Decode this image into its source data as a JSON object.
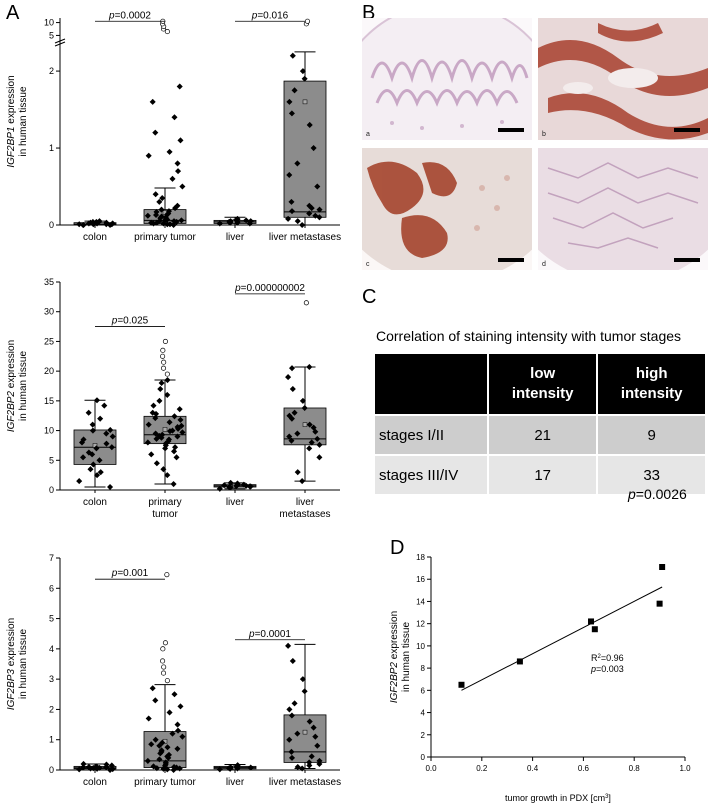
{
  "panels": {
    "A": "A",
    "B": "B",
    "C": "C",
    "D": "D"
  },
  "chart_data": [
    {
      "type": "box",
      "ylabel_gene": "IGF2BP1",
      "ylabel_rest": " expression",
      "ylabel_line2": "in human tissue",
      "categories": [
        {
          "line1": "colon",
          "line2": ""
        },
        {
          "line1": "primary tumor",
          "line2": ""
        },
        {
          "line1": "liver",
          "line2": ""
        },
        {
          "line1": "liver metastases",
          "line2": ""
        }
      ],
      "yticks_lower": [
        {
          "v": 0,
          "label": "0"
        },
        {
          "v": 1,
          "label": "1"
        },
        {
          "v": 2,
          "label": "2"
        }
      ],
      "yticks_upper": [
        {
          "v": 5,
          "label": "5"
        },
        {
          "v": 10,
          "label": "10"
        }
      ],
      "axis_break": true,
      "boxes": [
        {
          "min": 0.0,
          "q1": 0.0,
          "median": 0.01,
          "q3": 0.03,
          "max": 0.05,
          "mean": 0.02
        },
        {
          "min": 0.0,
          "q1": 0.02,
          "median": 0.06,
          "q3": 0.2,
          "max": 0.48,
          "mean": 0.16
        },
        {
          "min": 0.0,
          "q1": 0.02,
          "median": 0.04,
          "q3": 0.06,
          "max": 0.1,
          "mean": 0.05
        },
        {
          "min": 0.0,
          "q1": 0.1,
          "median": 0.17,
          "q3": 1.87,
          "max": 2.25,
          "mean": 1.6
        }
      ],
      "points": [
        [
          0.0,
          0.01,
          0.02,
          0.03,
          0.01,
          0.05,
          0.0,
          0.02,
          0.04,
          0.01,
          0.03,
          0.0,
          0.02,
          0.01,
          0.04
        ],
        [
          0.0,
          0.01,
          0.02,
          0.03,
          0.04,
          0.05,
          0.06,
          0.08,
          0.1,
          0.12,
          0.15,
          0.18,
          0.2,
          0.25,
          0.3,
          0.35,
          0.4,
          0.5,
          0.6,
          0.7,
          0.8,
          0.9,
          0.95,
          1.1,
          1.2,
          1.4,
          1.6,
          1.8,
          0.02,
          0.05,
          0.07,
          0.09,
          0.11,
          0.14,
          0.03,
          0.01,
          0.06,
          0.13,
          0.17,
          0.22
        ],
        [
          0.02,
          0.03,
          0.04,
          0.05,
          0.06,
          0.07,
          0.03,
          0.04,
          0.08,
          0.05,
          0.02,
          0.06
        ],
        [
          0.0,
          0.05,
          0.1,
          0.15,
          0.2,
          0.22,
          0.3,
          0.5,
          0.65,
          0.8,
          1.0,
          1.3,
          1.45,
          1.6,
          1.75,
          1.9,
          2.0,
          2.2,
          0.08,
          0.18,
          0.25,
          0.12
        ]
      ],
      "outliers": [
        [],
        [
          6.5,
          7.5,
          8.5,
          9.5,
          10.5
        ],
        [],
        [
          9.5,
          10.5
        ]
      ],
      "comparisons": [
        {
          "from": 0,
          "to": 1,
          "label_p": "p",
          "label_val": "=0.0002",
          "y": 10.5
        },
        {
          "from": 2,
          "to": 3,
          "label_p": "p",
          "label_val": "=0.016",
          "y": 10.5
        }
      ]
    },
    {
      "type": "box",
      "ylabel_gene": "IGF2BP2",
      "ylabel_rest": " expression",
      "ylabel_line2": "in human tissue",
      "categories": [
        {
          "line1": "colon",
          "line2": ""
        },
        {
          "line1": "primary",
          "line2": "tumor"
        },
        {
          "line1": "liver",
          "line2": ""
        },
        {
          "line1": "liver",
          "line2": "metastases"
        }
      ],
      "ylim": [
        0,
        35
      ],
      "yticks": [
        0,
        5,
        10,
        15,
        20,
        25,
        30,
        35
      ],
      "boxes": [
        {
          "min": 0.5,
          "q1": 4.3,
          "median": 7.2,
          "q3": 10.1,
          "max": 15.1,
          "mean": 7.5
        },
        {
          "min": 1.0,
          "q1": 7.8,
          "median": 9.3,
          "q3": 12.4,
          "max": 18.5,
          "mean": 10.2
        },
        {
          "min": 0.2,
          "q1": 0.5,
          "median": 0.7,
          "q3": 0.9,
          "max": 1.2,
          "mean": 0.7
        },
        {
          "min": 1.5,
          "q1": 7.6,
          "median": 8.6,
          "q3": 13.8,
          "max": 20.7,
          "mean": 11.0
        }
      ],
      "points": [
        [
          0.5,
          1.5,
          2.5,
          3.5,
          4.3,
          5.0,
          5.5,
          6.3,
          7.0,
          7.2,
          7.8,
          8.5,
          9.0,
          9.5,
          10.0,
          10.1,
          11.0,
          12.0,
          13.0,
          14.2,
          15.1,
          3.0,
          6.0,
          8.0
        ],
        [
          1.0,
          2.5,
          3.5,
          4.5,
          5.5,
          6.5,
          7.0,
          7.5,
          7.8,
          8.0,
          8.2,
          8.5,
          8.8,
          9.0,
          9.1,
          9.3,
          9.5,
          9.7,
          10.0,
          10.3,
          10.6,
          11.0,
          11.4,
          11.8,
          12.1,
          12.4,
          13.0,
          13.6,
          14.2,
          15.0,
          16.0,
          17.0,
          18.0,
          18.5,
          6.0,
          9.9,
          10.8,
          12.8,
          8.6,
          7.2
        ],
        [
          0.2,
          0.4,
          0.5,
          0.6,
          0.7,
          0.8,
          0.9,
          1.0,
          1.1,
          1.2,
          0.6,
          0.7,
          0.8,
          0.9
        ],
        [
          1.5,
          3.0,
          5.5,
          7.0,
          7.6,
          8.0,
          8.3,
          8.6,
          9.0,
          9.5,
          10.5,
          11.0,
          12.0,
          12.5,
          13.0,
          13.8,
          15.0,
          17.0,
          19.0,
          20.5,
          20.7,
          9.8
        ]
      ],
      "outliers": [
        [],
        [
          19.5,
          20.5,
          21.5,
          22.5,
          23.5,
          25.0
        ],
        [],
        [
          31.5
        ]
      ],
      "comparisons": [
        {
          "from": 0,
          "to": 1,
          "label_p": "p",
          "label_val": "=0.025",
          "y": 27.5
        },
        {
          "from": 2,
          "to": 3,
          "label_p": "p",
          "label_val": "=0.000000002",
          "y": 33.0
        }
      ]
    },
    {
      "type": "box",
      "ylabel_gene": "IGF2BP3",
      "ylabel_rest": " expression",
      "ylabel_line2": "in human tissue",
      "categories": [
        {
          "line1": "colon",
          "line2": ""
        },
        {
          "line1": "primary tumor",
          "line2": ""
        },
        {
          "line1": "liver",
          "line2": ""
        },
        {
          "line1": "liver metastases",
          "line2": ""
        }
      ],
      "ylim": [
        0,
        7
      ],
      "yticks": [
        0,
        1,
        2,
        3,
        4,
        5,
        6,
        7
      ],
      "boxes": [
        {
          "min": 0.0,
          "q1": 0.04,
          "median": 0.07,
          "q3": 0.12,
          "max": 0.2,
          "mean": 0.08
        },
        {
          "min": 0.0,
          "q1": 0.08,
          "median": 0.3,
          "q3": 1.27,
          "max": 2.82,
          "mean": 0.95
        },
        {
          "min": 0.0,
          "q1": 0.04,
          "median": 0.08,
          "q3": 0.12,
          "max": 0.18,
          "mean": 0.08
        },
        {
          "min": 0.05,
          "q1": 0.25,
          "median": 0.6,
          "q3": 1.82,
          "max": 4.15,
          "mean": 1.25
        }
      ],
      "points": [
        [
          0.0,
          0.02,
          0.04,
          0.05,
          0.06,
          0.07,
          0.08,
          0.1,
          0.12,
          0.15,
          0.18,
          0.2,
          0.03,
          0.09
        ],
        [
          0.0,
          0.02,
          0.04,
          0.06,
          0.08,
          0.1,
          0.15,
          0.2,
          0.25,
          0.3,
          0.4,
          0.5,
          0.6,
          0.7,
          0.8,
          0.9,
          1.0,
          1.1,
          1.2,
          1.3,
          1.5,
          1.7,
          1.9,
          2.1,
          2.3,
          2.5,
          2.7,
          0.05,
          0.12,
          0.35,
          0.45,
          0.55,
          0.65,
          0.75,
          0.85
        ],
        [
          0.02,
          0.04,
          0.06,
          0.08,
          0.1,
          0.12,
          0.14,
          0.16,
          0.05,
          0.09
        ],
        [
          0.05,
          0.1,
          0.2,
          0.25,
          0.3,
          0.45,
          0.6,
          0.8,
          1.0,
          1.2,
          1.4,
          1.6,
          1.8,
          2.0,
          2.2,
          2.6,
          3.0,
          3.6,
          4.1,
          0.4,
          0.15,
          1.1
        ]
      ],
      "outliers": [
        [],
        [
          2.95,
          3.2,
          3.4,
          3.6,
          4.0,
          4.2,
          6.45
        ],
        [],
        []
      ],
      "comparisons": [
        {
          "from": 0,
          "to": 1,
          "label_p": "p",
          "label_val": "=0.001",
          "y": 6.3
        },
        {
          "from": 2,
          "to": 3,
          "label_p": "p",
          "label_val": "=0.0001",
          "y": 4.3
        }
      ]
    },
    {
      "type": "scatter",
      "xlabel_main": "tumor growth in PDX [cm",
      "xlabel_sup": "3",
      "xlabel_end": "]",
      "ylabel_gene": "IGF2BP2",
      "ylabel_rest": " expression",
      "ylabel_line2": "in human tissue",
      "xlim": [
        0.0,
        1.0
      ],
      "ylim": [
        0,
        18
      ],
      "xticks": [
        {
          "v": 0.0,
          "label": "0.0"
        },
        {
          "v": 0.2,
          "label": "0.2"
        },
        {
          "v": 0.4,
          "label": "0.4"
        },
        {
          "v": 0.6,
          "label": "0.6"
        },
        {
          "v": 0.8,
          "label": "0.8"
        },
        {
          "v": 1.0,
          "label": "1.0"
        }
      ],
      "yticks": [
        0,
        2,
        4,
        6,
        8,
        10,
        12,
        14,
        16,
        18
      ],
      "x": [
        0.12,
        0.35,
        0.63,
        0.645,
        0.9,
        0.91
      ],
      "y": [
        6.5,
        8.6,
        12.2,
        11.5,
        13.8,
        17.1
      ],
      "fit": {
        "x": [
          0.12,
          0.91
        ],
        "y": [
          6.0,
          15.3
        ]
      },
      "r2_text": "R",
      "r2_sup": "2",
      "r2_val": "=0.96",
      "p_label": "p",
      "p_val": "=0.003"
    }
  ],
  "tiles": [
    {
      "label": "a",
      "bg": "#f4eef3",
      "tint": "#c9a8c6"
    },
    {
      "label": "b",
      "bg": "#e8d8d8",
      "tint": "#a8402e"
    },
    {
      "label": "c",
      "bg": "#e7dcd8",
      "tint": "#a5452e"
    },
    {
      "label": "d",
      "bg": "#eadde4",
      "tint": "#b994b4"
    }
  ],
  "correlation": {
    "title": "Correlation of staining intensity with tumor stages",
    "header": {
      "c1_l1": "low",
      "c1_l2": "intensity",
      "c2_l1": "high",
      "c2_l2": "intensity"
    },
    "rows": [
      {
        "stage": "stages I/II",
        "low": "21",
        "high": "9"
      },
      {
        "stage": "stages III/IV",
        "low": "17",
        "high": "33"
      }
    ],
    "p_label": "p",
    "p_val": "=0.0026"
  },
  "colors": {
    "box_fill": "#8c8c8c",
    "mean_marker": "#aaaaaa"
  }
}
